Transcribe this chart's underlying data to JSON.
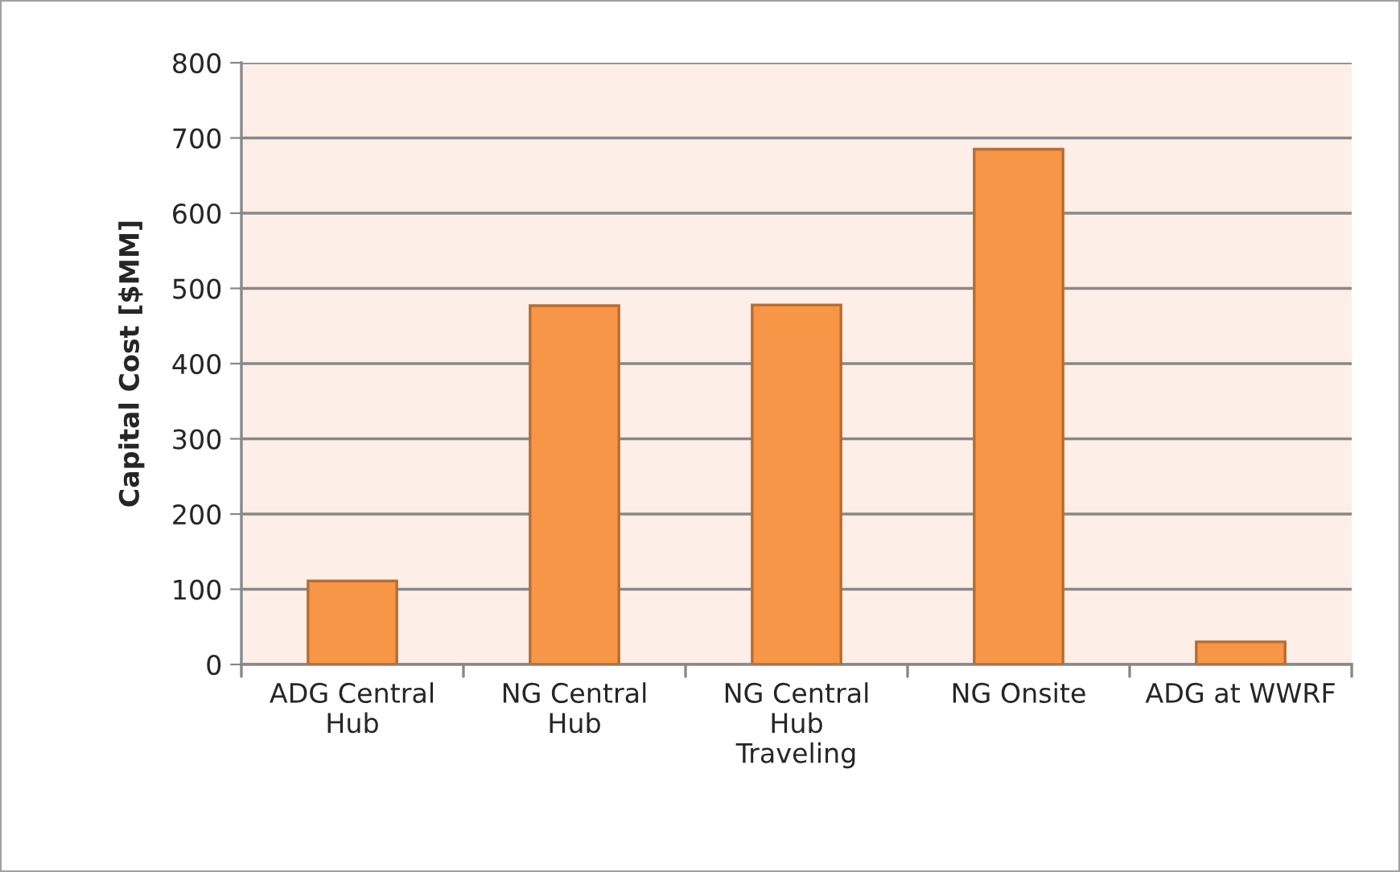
{
  "chart_data": {
    "type": "bar",
    "ylabel": "Capital Cost [$MM]",
    "categories": [
      "ADG Central Hub",
      "NG Central Hub",
      "NG Central Hub Traveling",
      "NG Onsite",
      "ADG at WWRF"
    ],
    "values": [
      111,
      477,
      478,
      685,
      30
    ],
    "color": "#f79646",
    "ylim": [
      0,
      800
    ],
    "yticks": [
      0,
      100,
      200,
      300,
      400,
      500,
      600,
      700,
      800
    ],
    "grid": "y",
    "legend": false
  }
}
